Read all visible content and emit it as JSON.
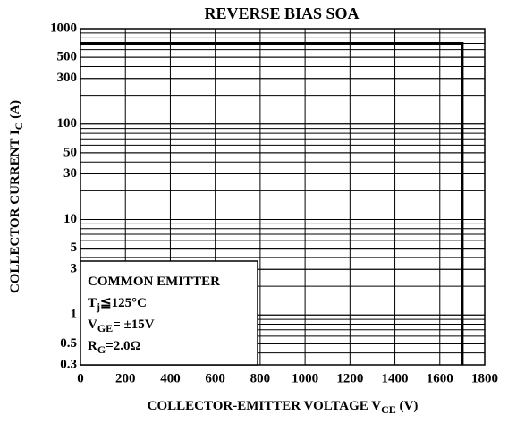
{
  "chart_data": {
    "type": "line",
    "title": "REVERSE BIAS SOA",
    "x_label": {
      "text": "COLLECTOR-EMITTER VOLTAGE  V",
      "sub": "CE",
      "rest": "   (V)"
    },
    "y_label": {
      "text": "COLLECTOR CURRENT  I",
      "sub": "C",
      "rest": "   (A)"
    },
    "annotations": [
      {
        "text": "COMMON EMITTER"
      },
      {
        "text": "T",
        "sub": "j",
        "rest": "≦125°C"
      },
      {
        "text": "V",
        "sub": "GE",
        "rest": "= ±15V"
      },
      {
        "text": "R",
        "sub": "G",
        "rest": "=2.0Ω"
      }
    ],
    "x": [
      0,
      1700,
      1700
    ],
    "series": [
      {
        "color": "#000000",
        "values": [
          700,
          700,
          0.3
        ]
      }
    ],
    "xlim": [
      0,
      1800
    ],
    "xticks": [
      0,
      200,
      400,
      600,
      800,
      1000,
      1200,
      1400,
      1600,
      1800
    ],
    "ylim": [
      0.3,
      1000
    ],
    "yticks": [
      0.3,
      0.5,
      1,
      3,
      5,
      10,
      30,
      50,
      100,
      300,
      500,
      1000
    ],
    "ylog": true,
    "grid": true
  }
}
